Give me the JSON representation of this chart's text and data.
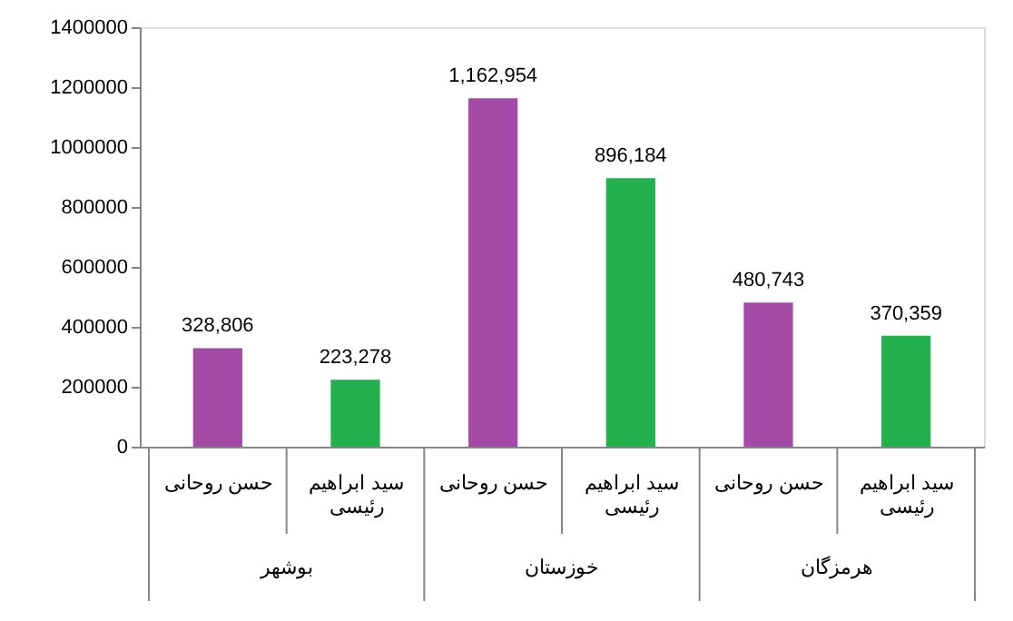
{
  "chart_data": {
    "type": "bar",
    "categories": [
      "حسن روحانی",
      "سید ابراهیم رئیسی",
      "حسن روحانی",
      "سید ابراهیم رئیسی",
      "حسن روحانی",
      "سید ابراهیم رئیسی"
    ],
    "values": [
      328806,
      223278,
      1162954,
      896184,
      480743,
      370359
    ],
    "colors": [
      "#a34ba6",
      "#22b14c",
      "#a34ba6",
      "#22b14c",
      "#a34ba6",
      "#22b14c"
    ],
    "annotations": [
      "بوشهر",
      "خوزستان",
      "هرمزگان"
    ],
    "ylim": [
      0,
      1400000
    ],
    "yticks": [
      0,
      200000,
      400000,
      600000,
      800000,
      1000000,
      1200000,
      1400000
    ],
    "value_labels": [
      "328,806",
      "223,278",
      "1,162,954",
      "896,184",
      "480,743",
      "370,359"
    ],
    "grid": false
  }
}
